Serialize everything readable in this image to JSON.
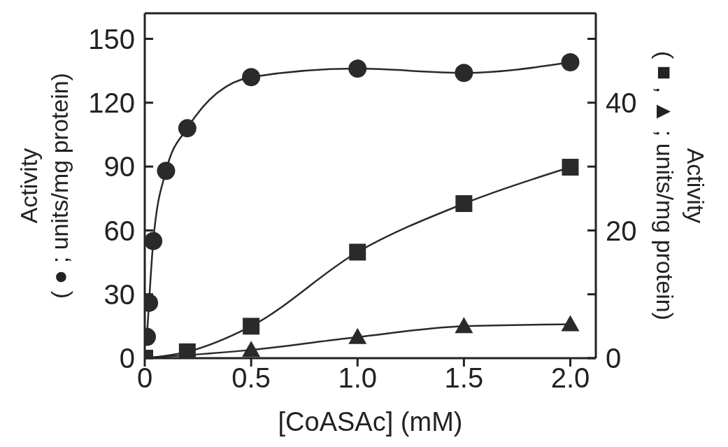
{
  "chart_data": {
    "type": "line",
    "xlabel": "[CoASAc] (mM)",
    "ylabel": "Activity\n( ● ; units/mg protein)",
    "y2label": "Activity\n( ■ , ▲ ; units/mg protein)",
    "xlim": [
      0,
      2.12
    ],
    "xticks": [
      0,
      0.5,
      {
        "value": 1,
        "label": "1.0"
      },
      1.5,
      {
        "value": 2,
        "label": "2.0"
      }
    ],
    "ylim": [
      0,
      162
    ],
    "yticks": [
      0,
      30,
      60,
      90,
      120,
      150
    ],
    "y2lim": [
      0,
      54
    ],
    "y2ticks": [
      0,
      {
        "value": 10,
        "label": null
      },
      20,
      {
        "value": 30,
        "label": null
      },
      40,
      {
        "value": 50,
        "label": null
      }
    ],
    "grid": false,
    "legend": false,
    "series": [
      {
        "color": "#2a2a2a",
        "marker": "circle",
        "x": [
          0.01,
          0.02,
          0.04,
          0.1,
          0.2,
          0.5,
          1.0,
          1.5,
          2.0
        ],
        "values": [
          10,
          26,
          55,
          88,
          108,
          132,
          136,
          134,
          139
        ]
      },
      {
        "color": "#2a2a2a",
        "marker": "square",
        "axis": "y2",
        "x": [
          0,
          0.2,
          0.5,
          1.0,
          1.5,
          2.0
        ],
        "values": [
          0,
          1,
          5,
          16.6,
          24.2,
          29.9
        ]
      },
      {
        "color": "#2a2a2a",
        "marker": "triangle",
        "axis": "y2",
        "x": [
          0,
          0.5,
          1.0,
          1.5,
          2.0
        ],
        "values": [
          0,
          1.3,
          3.3,
          5,
          5.3
        ]
      }
    ]
  }
}
